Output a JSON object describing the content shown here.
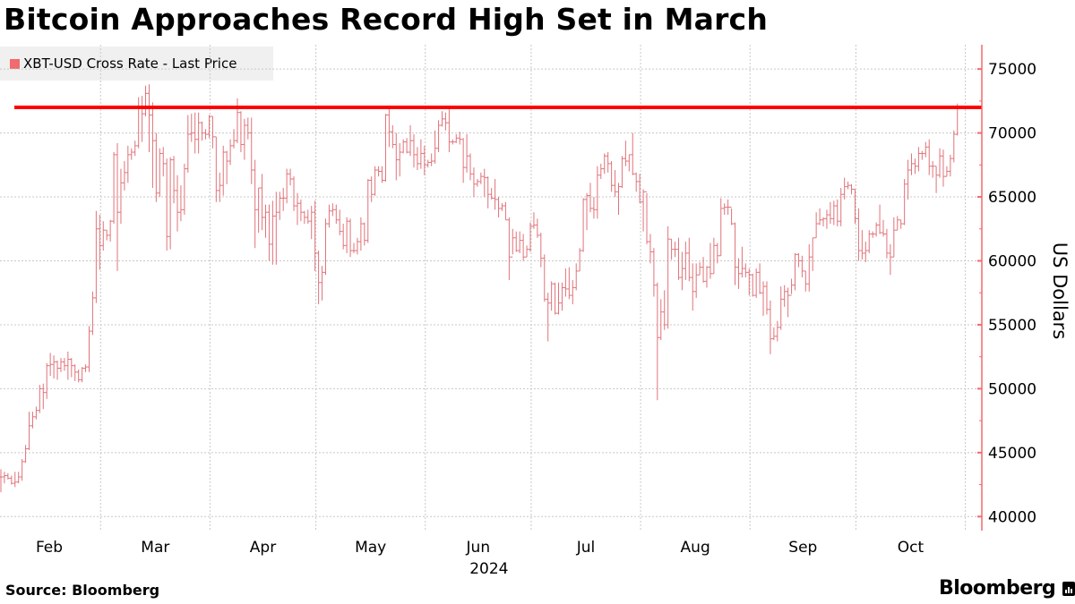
{
  "title": "Bitcoin Approaches Record High Set in March",
  "legend": {
    "label": "XBT-USD Cross Rate - Last Price",
    "color": "#f06a6f"
  },
  "footer": {
    "source": "Source: Bloomberg",
    "brand": "Bloomberg"
  },
  "chart_data": {
    "type": "ohlc-bar",
    "title": "Bitcoin Approaches Record High Set in March",
    "ylabel": "US Dollars",
    "xlabel": "",
    "x_tick_labels": [
      "Feb",
      "Mar",
      "Apr",
      "May",
      "Jun",
      "Jul",
      "Aug",
      "Sep",
      "Oct"
    ],
    "x_year_label": "2024",
    "y_ticks": [
      40000,
      45000,
      50000,
      55000,
      60000,
      65000,
      70000,
      75000
    ],
    "ylim": [
      38900,
      76900
    ],
    "y_axis_position": "right",
    "grid": true,
    "legend_position": "top-left",
    "series_color": "#e0737a",
    "axis_color": "#f06a6f",
    "reference_line": {
      "value": 72000,
      "color": "#ff0000"
    },
    "series": [
      {
        "name": "XBT-USD Cross Rate - Last Price",
        "months": [
          {
            "month": "2024-02",
            "close": [
              43100,
              43200,
              43000,
              42600,
              42700,
              43100,
              44300,
              45300,
              47100,
              47800,
              48300,
              50000,
              49700,
              51800,
              51900,
              52100,
              51600,
              52100,
              51800,
              52300,
              51800,
              51300,
              50700,
              51600,
              51700,
              54500,
              57100,
              62500,
              61200
            ],
            "high": [
              43700,
              43500,
              43400,
              43200,
              43500,
              43500,
              44500,
              45600,
              48200,
              48200,
              48600,
              50300,
              50400,
              52000,
              52800,
              52600,
              52200,
              52400,
              52400,
              52900,
              52400,
              51900,
              51500,
              51700,
              51900,
              54900,
              57600,
              63900,
              63600
            ],
            "low": [
              41900,
              42600,
              42900,
              42500,
              42300,
              42600,
              42800,
              44200,
              45200,
              46900,
              47600,
              48100,
              48400,
              49200,
              51000,
              50800,
              50700,
              51300,
              51400,
              50700,
              50900,
              50600,
              50500,
              50500,
              51300,
              51300,
              54200,
              56700,
              59300
            ]
          },
          {
            "month": "2024-03",
            "close": [
              62400,
              62000,
              63100,
              68300,
              63800,
              66100,
              66900,
              68300,
              68500,
              69000,
              72100,
              71500,
              73100,
              71400,
              69400,
              65300,
              68400,
              67600,
              61900,
              67900,
              65500,
              63800,
              64000,
              67200,
              69900,
              70000,
              69500,
              70800,
              70000,
              69900,
              71300
            ],
            "high": [
              63100,
              62400,
              63200,
              68500,
              69200,
              67200,
              67800,
              69000,
              68800,
              69400,
              72800,
              72900,
              73700,
              73800,
              72400,
              70000,
              68800,
              68900,
              68000,
              68100,
              68200,
              66700,
              65900,
              67600,
              71400,
              71500,
              71600,
              71600,
              70900,
              70300,
              71400
            ],
            "low": [
              60800,
              61600,
              61500,
              62900,
              59200,
              62900,
              65500,
              66100,
              67900,
              68200,
              68800,
              69300,
              71300,
              68500,
              65700,
              64600,
              65000,
              66600,
              60800,
              60900,
              64500,
              62300,
              63100,
              63600,
              66900,
              69300,
              68400,
              68400,
              69400,
              69500,
              69600
            ]
          },
          {
            "month": "2024-04",
            "close": [
              69700,
              65500,
              65900,
              68500,
              67800,
              69000,
              69400,
              71600,
              69100,
              70600,
              70000,
              67100,
              64000,
              65700,
              63400,
              63800,
              61300,
              63500,
              63800,
              64900,
              64900,
              66800,
              66400,
              64300,
              64500,
              63800,
              63400,
              63100,
              63800,
              60600
            ],
            "high": [
              71300,
              69700,
              66900,
              69000,
              68600,
              69500,
              70300,
              72700,
              71700,
              71100,
              71200,
              71200,
              67900,
              65700,
              66800,
              64400,
              64400,
              64700,
              65400,
              65400,
              65700,
              67200,
              67200,
              66600,
              65300,
              64800,
              63900,
              64000,
              64300,
              64700
            ],
            "low": [
              68800,
              64600,
              64600,
              65100,
              66000,
              67500,
              68800,
              69200,
              68500,
              67900,
              69500,
              66000,
              61000,
              62200,
              62400,
              61800,
              60000,
              59700,
              59700,
              63200,
              63900,
              64500,
              65900,
              63900,
              62800,
              63100,
              62900,
              62900,
              61700,
              59200
            ]
          },
          {
            "month": "2024-05",
            "close": [
              58300,
              59100,
              62900,
              63900,
              64000,
              63200,
              62300,
              61200,
              63100,
              60800,
              60800,
              61500,
              62900,
              61600,
              66300,
              65200,
              67100,
              67000,
              66300,
              71400,
              70100,
              69100,
              67900,
              68500,
              69300,
              68500,
              69400,
              68300,
              67600,
              68400,
              67500
            ],
            "high": [
              60800,
              59600,
              63300,
              64400,
              64500,
              64400,
              64000,
              62900,
              63400,
              63300,
              61400,
              61800,
              63400,
              63000,
              66400,
              66600,
              67400,
              67400,
              67400,
              71500,
              71900,
              70600,
              70000,
              69200,
              69500,
              69600,
              70600,
              69900,
              68900,
              69500,
              69000
            ],
            "low": [
              56600,
              56900,
              58900,
              62600,
              63500,
              62900,
              62000,
              60900,
              60600,
              60300,
              60600,
              60500,
              60800,
              61200,
              61400,
              64600,
              65100,
              66600,
              66100,
              66200,
              68900,
              68800,
              66300,
              66600,
              68400,
              68400,
              68200,
              67300,
              67100,
              67200,
              66700
            ]
          },
          {
            "month": "2024-06",
            "close": [
              67700,
              67800,
              68800,
              70600,
              71100,
              70800,
              69300,
              69300,
              69600,
              69500,
              67300,
              68200,
              66800,
              66000,
              66200,
              66600,
              66500,
              65200,
              64900,
              64800,
              64100,
              64300,
              63200,
              60300,
              61800,
              60800,
              61600,
              60300,
              60900,
              62700
            ],
            "high": [
              67900,
              68400,
              70200,
              71000,
              71700,
              71600,
              71900,
              69500,
              69900,
              70100,
              69600,
              69900,
              68400,
              67300,
              66400,
              66900,
              67200,
              66600,
              65700,
              66400,
              65000,
              64500,
              64600,
              63400,
              62500,
              62300,
              62300,
              62100,
              61200,
              63000
            ],
            "low": [
              67300,
              67400,
              67600,
              68500,
              70500,
              70200,
              68500,
              69100,
              69200,
              69100,
              66100,
              66900,
              66300,
              65000,
              65800,
              66000,
              65000,
              64100,
              64800,
              64000,
              63400,
              63900,
              63200,
              58500,
              60500,
              60700,
              60600,
              60000,
              60300,
              60700
            ]
          },
          {
            "month": "2024-07",
            "close": [
              62800,
              62000,
              60200,
              57000,
              56700,
              58200,
              55900,
              56700,
              57900,
              57800,
              57300,
              57900,
              59200,
              60800,
              64800,
              65100,
              64100,
              64000,
              66700,
              67200,
              68200,
              67600,
              65900,
              65400,
              65800,
              68000,
              67800,
              68300,
              66800,
              66200,
              64600
            ],
            "high": [
              63800,
              63300,
              62200,
              60500,
              57500,
              58400,
              58300,
              58300,
              58300,
              59400,
              59500,
              58500,
              59800,
              61000,
              64900,
              65300,
              66100,
              65000,
              67400,
              67600,
              68400,
              68500,
              67800,
              67100,
              66100,
              68200,
              69400,
              68300,
              70000,
              66900,
              66800
            ],
            "low": [
              62500,
              61800,
              59500,
              56800,
              53700,
              56100,
              55800,
              55800,
              56100,
              57200,
              57000,
              56600,
              57700,
              59200,
              60700,
              62400,
              63800,
              63300,
              63300,
              66400,
              66800,
              66900,
              65400,
              65000,
              63600,
              65700,
              67400,
              67000,
              66700,
              65400,
              64500
            ]
          },
          {
            "month": "2024-08",
            "close": [
              65400,
              61500,
              60700,
              58100,
              54000,
              56000,
              55000,
              61700,
              60900,
              60900,
              58700,
              59400,
              60600,
              58700,
              57600,
              58900,
              59500,
              58400,
              59500,
              59000,
              61200,
              60400,
              64100,
              64200,
              64200,
              62900,
              59500,
              59000,
              59400,
              59100,
              58900
            ],
            "high": [
              65600,
              65300,
              62100,
              61000,
              58300,
              57000,
              57700,
              62700,
              61700,
              61500,
              61800,
              60700,
              61500,
              61800,
              59800,
              59800,
              59900,
              60300,
              59600,
              61400,
              61800,
              61400,
              64900,
              64500,
              64800,
              64100,
              63000,
              60200,
              61100,
              59800,
              59400
            ],
            "low": [
              62300,
              61300,
              59800,
              57200,
              49100,
              53800,
              54600,
              54700,
              60100,
              60300,
              58500,
              57700,
              58500,
              58400,
              56100,
              57100,
              58900,
              58300,
              57900,
              58600,
              59000,
              59800,
              60400,
              63600,
              63600,
              62800,
              58100,
              57800,
              58700,
              58700,
              57300
            ]
          },
          {
            "month": "2024-09",
            "close": [
              57300,
              59100,
              57500,
              58000,
              56200,
              53900,
              54100,
              54800,
              57000,
              57600,
              57300,
              58100,
              60500,
              60000,
              59200,
              58200,
              60300,
              61800,
              62900,
              63200,
              63300,
              63600,
              63300,
              64300,
              63100,
              65200,
              65800,
              65900,
              65600,
              63300
            ],
            "high": [
              59000,
              59400,
              59800,
              58400,
              58400,
              56900,
              54800,
              55300,
              58000,
              58100,
              57900,
              58600,
              60600,
              60600,
              60400,
              59200,
              61300,
              61800,
              63800,
              64100,
              63400,
              64000,
              64600,
              64700,
              64800,
              65700,
              66500,
              66200,
              66000,
              65600
            ],
            "low": [
              57200,
              57100,
              57400,
              55700,
              55800,
              52700,
              53800,
              53700,
              54600,
              56400,
              55600,
              57400,
              57700,
              59500,
              58700,
              57600,
              57600,
              59200,
              61800,
              62800,
              62700,
              62500,
              62900,
              62800,
              62700,
              62700,
              64800,
              65600,
              65200,
              62900
            ]
          },
          {
            "month": "2024-10",
            "close": [
              60800,
              60600,
              60800,
              62100,
              62100,
              62800,
              62200,
              62100,
              60600,
              60300,
              62400,
              63200,
              62900,
              66000,
              67100,
              67600,
              67400,
              68400,
              68400,
              68900,
              67400,
              67400,
              66700,
              68200,
              66600,
              67000,
              68000,
              69900,
              71900
            ],
            "high": [
              64100,
              62400,
              61500,
              62400,
              62300,
              63000,
              64400,
              63200,
              62500,
              61300,
              63400,
              63500,
              63200,
              66400,
              67900,
              68400,
              68000,
              68900,
              68600,
              69300,
              69500,
              67800,
              67400,
              68800,
              68700,
              67400,
              68300,
              70200,
              72300
            ],
            "low": [
              60000,
              60100,
              59900,
              60600,
              61800,
              61900,
              62100,
              61900,
              60200,
              58900,
              60300,
              62400,
              62500,
              62800,
              64800,
              66700,
              66800,
              67000,
              67900,
              68100,
              66700,
              66500,
              65300,
              66500,
              65800,
              66600,
              66600,
              67700,
              69800
            ]
          }
        ]
      }
    ]
  }
}
